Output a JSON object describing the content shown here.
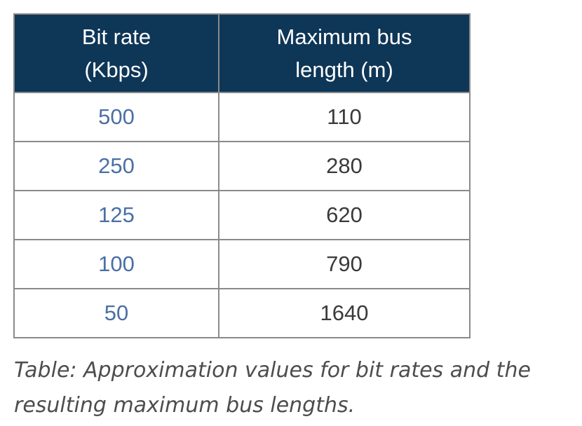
{
  "table": {
    "headers": [
      {
        "line1": "Bit rate",
        "line2": "(Kbps)"
      },
      {
        "line1": "Maximum bus",
        "line2": "length (m)"
      }
    ],
    "rows": [
      {
        "bit_rate": "500",
        "max_length": "110"
      },
      {
        "bit_rate": "250",
        "max_length": "280"
      },
      {
        "bit_rate": "125",
        "max_length": "620"
      },
      {
        "bit_rate": "100",
        "max_length": "790"
      },
      {
        "bit_rate": "50",
        "max_length": "1640"
      }
    ]
  },
  "caption": {
    "line1": "Table: Approximation values for bit rates and the",
    "line2": "resulting maximum bus lengths."
  },
  "colors": {
    "header_bg": "#0e3657",
    "header_text": "#ffffff",
    "rate_text": "#4a6fa5",
    "value_text": "#3a3a3a",
    "border": "#8a8a8a",
    "caption_text": "#4d4d4d"
  }
}
